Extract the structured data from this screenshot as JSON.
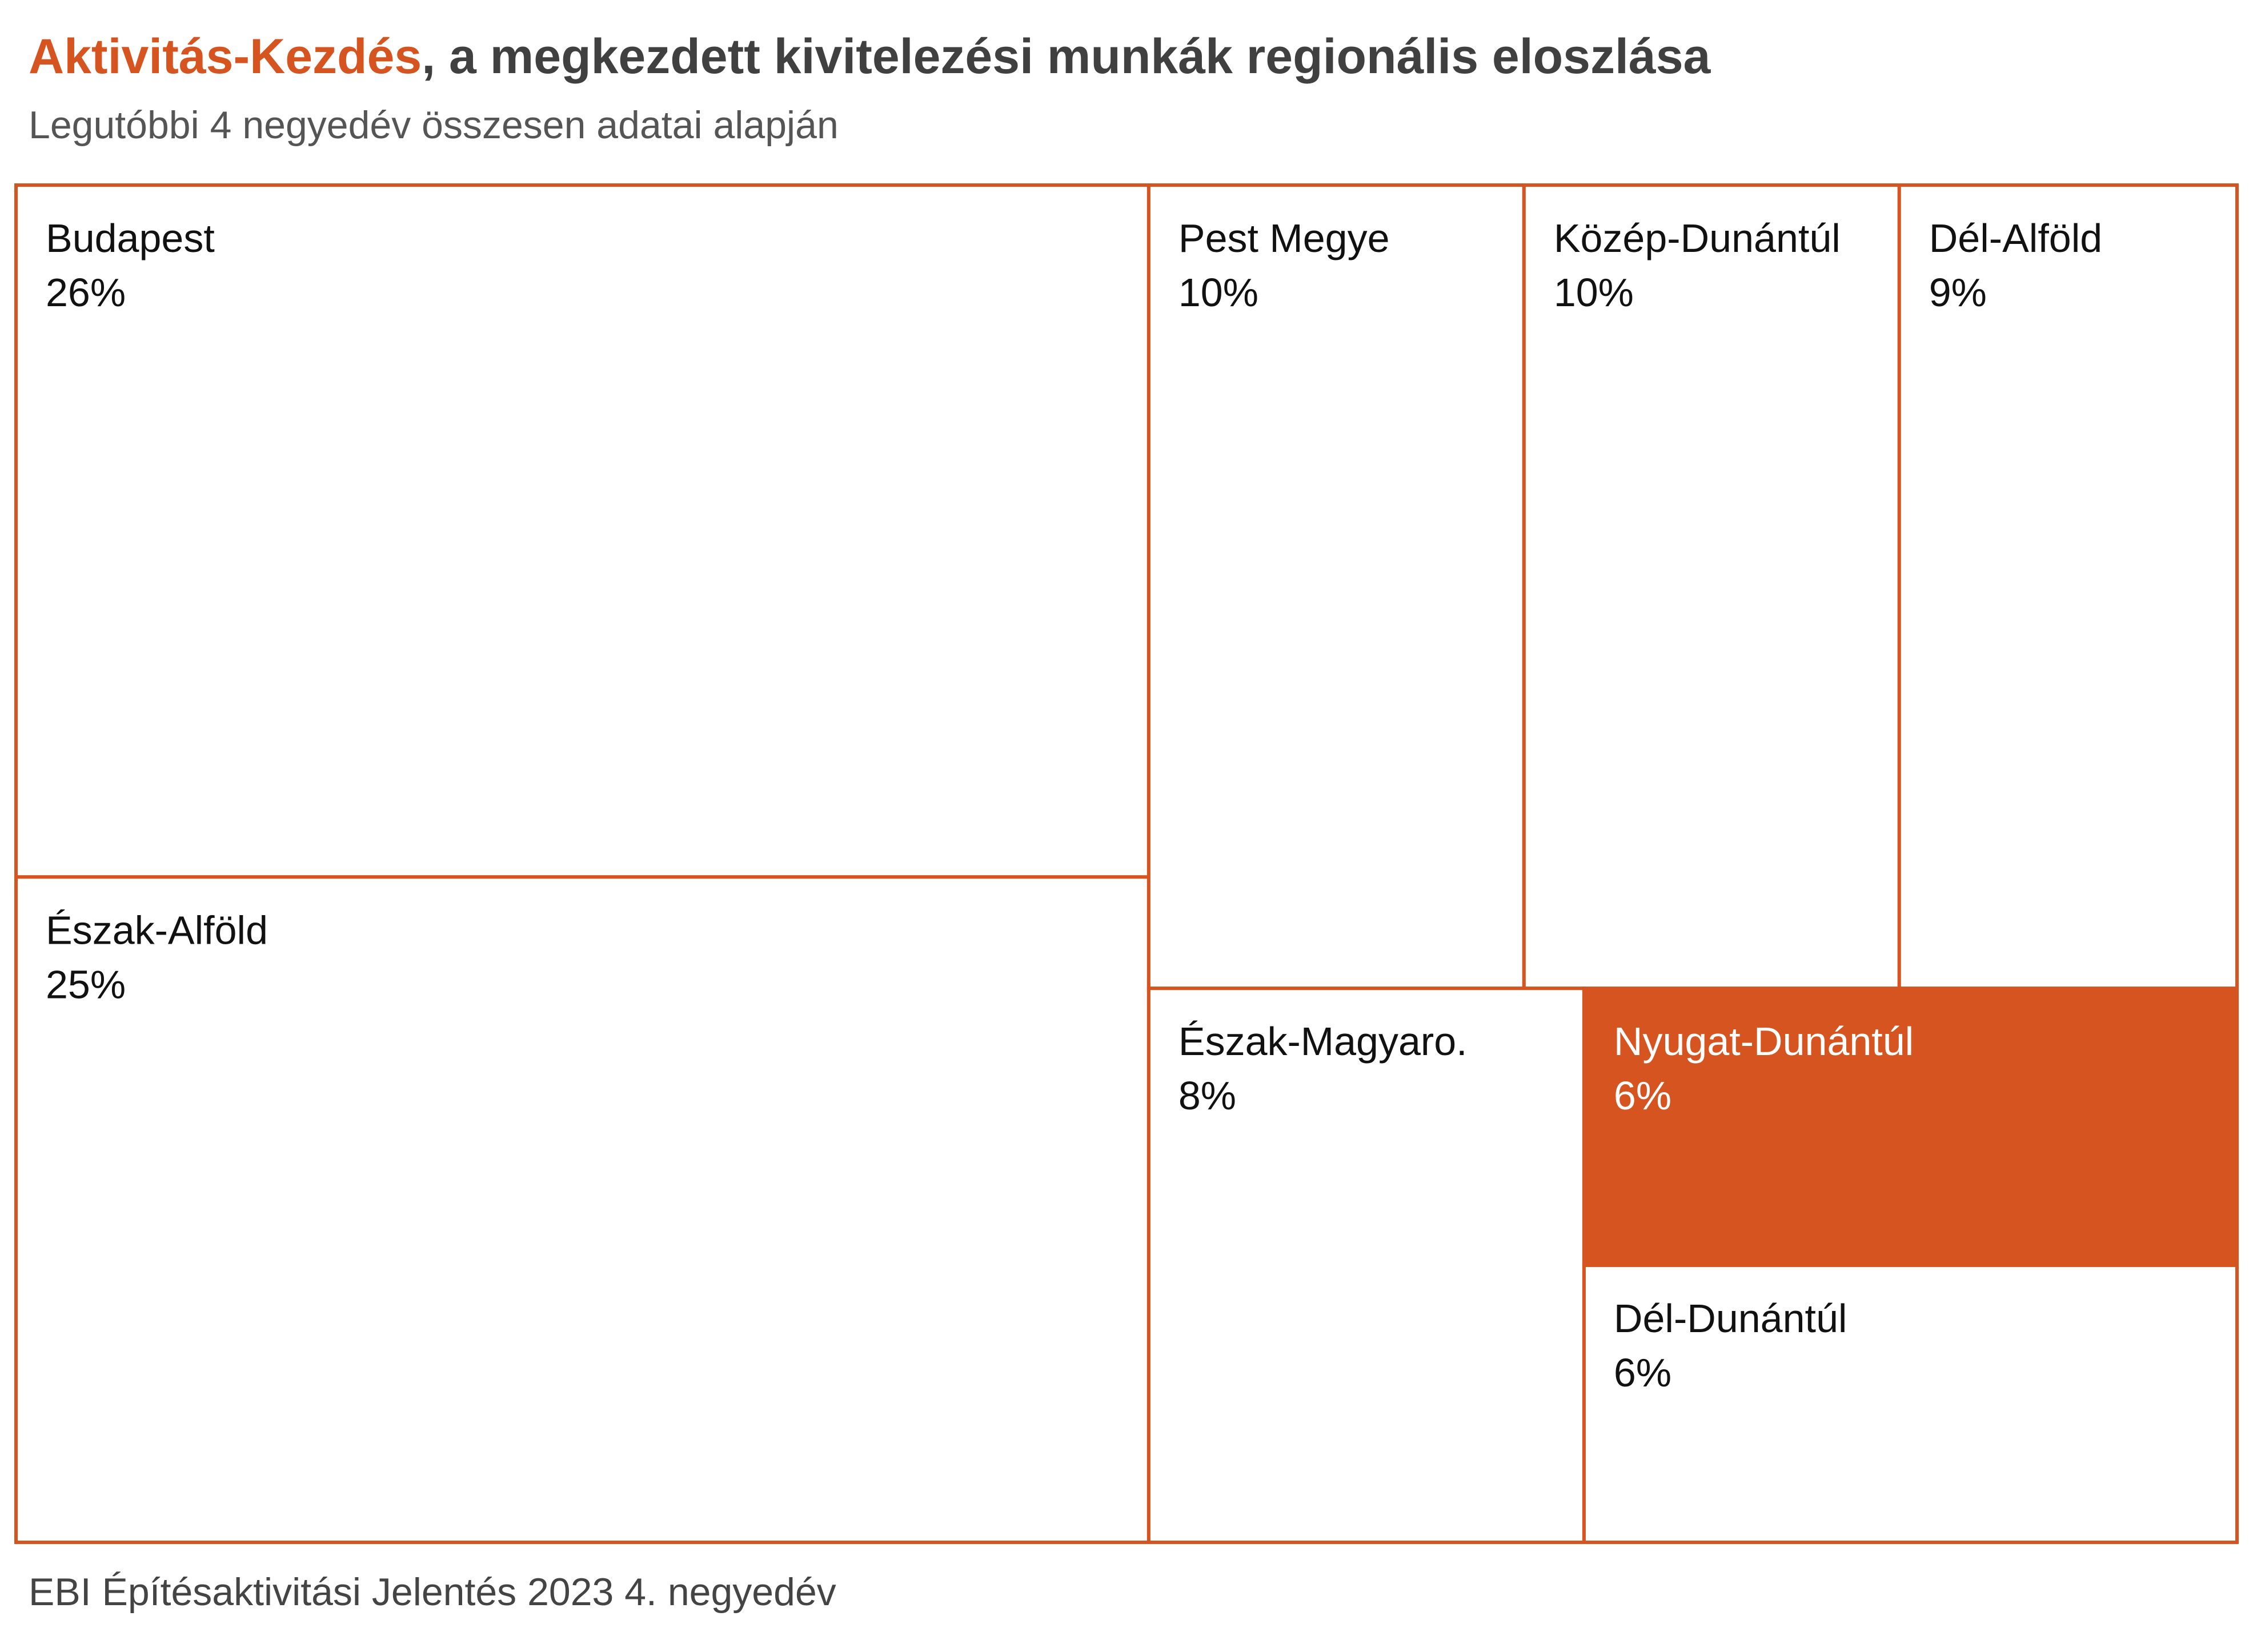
{
  "header": {
    "title_accent": "Aktivitás-Kezdés",
    "title_rest": ", a megkezdett kivitelezési munkák regionális eloszlása",
    "subtitle": "Legutóbbi 4 negyedév összesen adatai alapján"
  },
  "footer": {
    "source": "EBI Építésaktivitási Jelentés 2023 4. negyedév"
  },
  "colors": {
    "accent": "#d65420",
    "border": "#d65420",
    "tile_fill": "#ffffff",
    "highlight_fill": "#d65420",
    "label_dark": "#111111",
    "label_light": "#ffffff"
  },
  "chart_data": {
    "type": "treemap",
    "unit": "%",
    "highlighted": "Nyugat-Dunántúl",
    "items": [
      {
        "name": "Budapest",
        "value": 26,
        "label": "26%"
      },
      {
        "name": "Észak-Alföld",
        "value": 25,
        "label": "25%"
      },
      {
        "name": "Pest Megye",
        "value": 10,
        "label": "10%"
      },
      {
        "name": "Közép-Dunántúl",
        "value": 10,
        "label": "10%"
      },
      {
        "name": "Dél-Alföld",
        "value": 9,
        "label": "9%"
      },
      {
        "name": "Észak-Magyaro.",
        "value": 8,
        "label": "8%"
      },
      {
        "name": "Nyugat-Dunántúl",
        "value": 6,
        "label": "6%"
      },
      {
        "name": "Dél-Dunántúl",
        "value": 6,
        "label": "6%"
      }
    ]
  }
}
